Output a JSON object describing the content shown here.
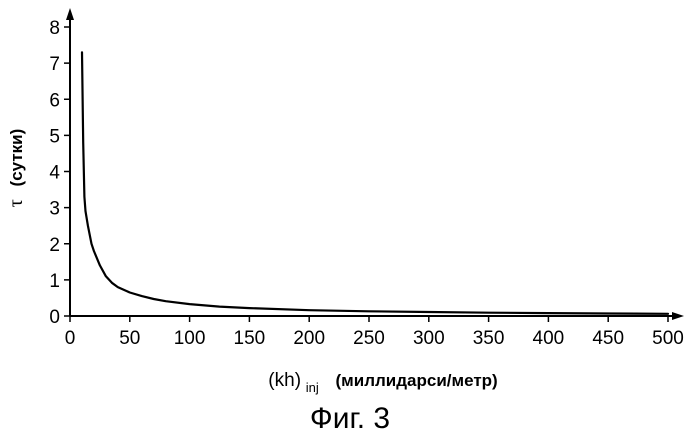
{
  "chart_data": {
    "type": "line",
    "xlabel_main": "(kh)",
    "xlabel_sub": "inj",
    "xlabel_unit": "(миллидарси/метр)",
    "ylabel_symbol": "τ",
    "ylabel_unit": "(сутки)",
    "xlim": [
      0,
      500
    ],
    "ylim": [
      0,
      8
    ],
    "x_ticks": [
      "0",
      "50",
      "100",
      "150",
      "200",
      "250",
      "300",
      "350",
      "400",
      "450",
      "500"
    ],
    "y_ticks": [
      "0",
      "1",
      "2",
      "3",
      "4",
      "5",
      "6",
      "7",
      "8"
    ],
    "grid": false,
    "series": [
      {
        "color": "#000000",
        "x": [
          10,
          11,
          12,
          13,
          15,
          18,
          20,
          25,
          30,
          35,
          40,
          50,
          60,
          70,
          80,
          100,
          125,
          150,
          200,
          250,
          300,
          350,
          400,
          450,
          500
        ],
        "y": [
          7.3,
          4.8,
          3.3,
          2.9,
          2.5,
          2.0,
          1.8,
          1.4,
          1.1,
          0.92,
          0.8,
          0.65,
          0.55,
          0.47,
          0.41,
          0.33,
          0.26,
          0.22,
          0.16,
          0.13,
          0.11,
          0.09,
          0.08,
          0.07,
          0.06
        ]
      }
    ]
  },
  "caption": "Фиг. 3"
}
